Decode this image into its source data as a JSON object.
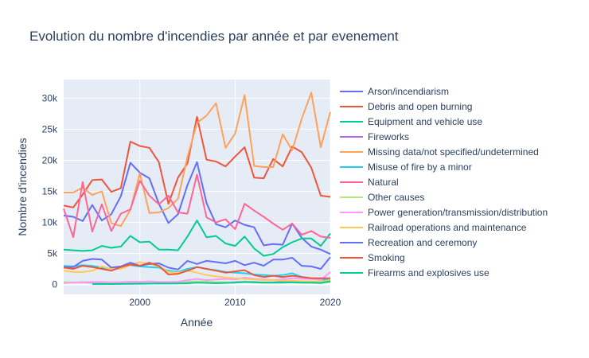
{
  "chart_data": {
    "type": "line",
    "title": "Evolution du nombre d'incendies par année et par evenement",
    "xlabel": "Année",
    "ylabel": "Nombre d'incendies",
    "xlim": [
      1992,
      2020
    ],
    "ylim": [
      -1600,
      33000
    ],
    "x_ticks": [
      2000,
      2010,
      2020
    ],
    "y_ticks": [
      0,
      5000,
      10000,
      15000,
      20000,
      25000,
      30000
    ],
    "y_tick_labels": [
      "0",
      "5k",
      "10k",
      "15k",
      "20k",
      "25k",
      "30k"
    ],
    "grid": true,
    "legend_position": "right",
    "x": [
      1992,
      1993,
      1994,
      1995,
      1996,
      1997,
      1998,
      1999,
      2000,
      2001,
      2002,
      2003,
      2004,
      2005,
      2006,
      2007,
      2008,
      2009,
      2010,
      2011,
      2012,
      2013,
      2014,
      2015,
      2016,
      2017,
      2018,
      2019,
      2020
    ],
    "series": [
      {
        "name": "Arson/incendiarism",
        "color": "#636efa",
        "values": [
          11100,
          10900,
          10200,
          12800,
          10300,
          11300,
          14200,
          19600,
          18000,
          17100,
          13000,
          9900,
          11300,
          16000,
          19700,
          13100,
          9700,
          9200,
          10300,
          9600,
          9200,
          6300,
          6500,
          6400,
          9800,
          7500,
          6100,
          5600,
          4900
        ]
      },
      {
        "name": "Debris and open burning",
        "color": "#ef553b",
        "values": [
          12700,
          12400,
          14500,
          16800,
          16900,
          14900,
          15500,
          23000,
          22300,
          22000,
          19700,
          13000,
          17200,
          19500,
          27000,
          20100,
          19800,
          19000,
          20600,
          22100,
          17200,
          17100,
          20200,
          19000,
          22200,
          21300,
          18800,
          14300,
          14100
        ]
      },
      {
        "name": "Equipment and vehicle use",
        "color": "#00cc96",
        "values": [
          5600,
          5500,
          5400,
          5500,
          6200,
          5900,
          6100,
          7800,
          6800,
          6900,
          5600,
          5600,
          5500,
          7700,
          10300,
          7600,
          7800,
          6600,
          6200,
          7700,
          5800,
          4600,
          4900,
          6000,
          6800,
          7400,
          7400,
          6200,
          8200
        ]
      },
      {
        "name": "Fireworks",
        "color": "#ab63fa",
        "values": [
          300,
          320,
          280,
          300,
          330,
          310,
          320,
          380,
          350,
          360,
          340,
          320,
          300,
          420,
          450,
          380,
          350,
          300,
          360,
          400,
          380,
          300,
          320,
          400,
          350,
          330,
          300,
          280,
          600
        ]
      },
      {
        "name": "Missing data/not specified/undetermined",
        "color": "#ffa15a",
        "values": [
          14800,
          14800,
          15600,
          14400,
          15000,
          9900,
          9400,
          12000,
          17900,
          11500,
          11600,
          12300,
          13800,
          20500,
          26000,
          27200,
          29200,
          22000,
          24300,
          30500,
          19100,
          18900,
          18900,
          24200,
          21600,
          26700,
          30900,
          22100,
          27800
        ]
      },
      {
        "name": "Misuse of fire by a minor",
        "color": "#19d3f3",
        "values": [
          3000,
          2900,
          3100,
          3000,
          2700,
          2500,
          2600,
          3100,
          2900,
          2800,
          2700,
          2200,
          2000,
          2500,
          2800,
          2500,
          2300,
          2000,
          1900,
          1800,
          1600,
          1500,
          1400,
          1500,
          1800,
          1200,
          1000,
          800,
          700
        ]
      },
      {
        "name": "Natural",
        "color": "#ff6692",
        "values": [
          12200,
          7600,
          16500,
          8500,
          12900,
          8600,
          11400,
          12100,
          16700,
          14300,
          12900,
          14300,
          11600,
          11400,
          17700,
          10800,
          10000,
          10500,
          8900,
          13000,
          11900,
          10900,
          9800,
          8800,
          9800,
          8000,
          8600,
          7700,
          7500
        ]
      },
      {
        "name": "Other causes",
        "color": "#b6e880",
        "values": [
          400,
          300,
          400,
          350,
          350,
          300,
          350,
          400,
          400,
          350,
          300,
          300,
          300,
          400,
          500,
          450,
          400,
          350,
          300,
          350,
          300,
          250,
          250,
          300,
          300,
          250,
          250,
          200,
          400
        ]
      },
      {
        "name": "Power generation/transmission/distribution",
        "color": "#ff97ff",
        "values": [
          200,
          300,
          300,
          400,
          400,
          350,
          350,
          450,
          400,
          500,
          400,
          400,
          450,
          700,
          900,
          700,
          800,
          900,
          800,
          1100,
          900,
          800,
          700,
          800,
          1000,
          900,
          900,
          700,
          2000
        ]
      },
      {
        "name": "Railroad operations and maintenance",
        "color": "#fecb52",
        "values": [
          2200,
          2000,
          2000,
          2200,
          2900,
          2500,
          2500,
          3100,
          3600,
          3300,
          2900,
          2000,
          1900,
          2200,
          1900,
          1500,
          1300,
          1100,
          1000,
          900,
          800,
          700,
          700,
          600,
          600,
          500,
          500,
          400,
          700
        ]
      },
      {
        "name": "Recreation and ceremony",
        "color": "#636efa",
        "values": [
          2800,
          2800,
          3800,
          4100,
          4000,
          2700,
          2900,
          3500,
          3000,
          3300,
          3400,
          2700,
          2400,
          3800,
          3300,
          3800,
          3600,
          3400,
          3800,
          3100,
          3500,
          3000,
          4000,
          4000,
          4300,
          3000,
          2900,
          2500,
          4400
        ]
      },
      {
        "name": "Smoking",
        "color": "#ef553b",
        "values": [
          2700,
          2500,
          3000,
          2800,
          2500,
          2200,
          2800,
          3200,
          3000,
          3500,
          3000,
          1600,
          1700,
          2200,
          2800,
          2500,
          2200,
          1900,
          2100,
          2300,
          1500,
          1200,
          1400,
          1200,
          1400,
          1200,
          1000,
          1000,
          1000
        ]
      },
      {
        "name": "Firearms and explosives use",
        "color": "#00cc96",
        "values": [
          null,
          null,
          null,
          50,
          60,
          70,
          80,
          100,
          120,
          130,
          150,
          140,
          150,
          200,
          300,
          250,
          200,
          250,
          300,
          400,
          350,
          300,
          300,
          300,
          350,
          300,
          300,
          250,
          500
        ]
      }
    ]
  }
}
